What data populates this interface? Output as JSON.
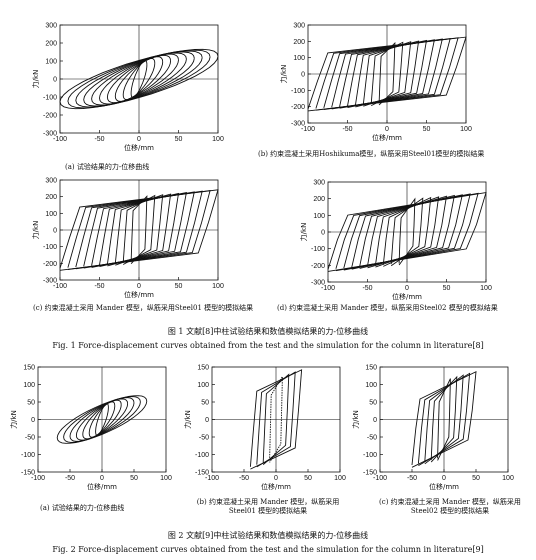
{
  "figure1": {
    "caption_cn": "图 1  文献[8]中柱试验结果和数值模拟结果的力-位移曲线",
    "caption_en": "Fig. 1   Force-displacement curves obtained from the test and the simulation for the column in literature[8]"
  },
  "figure2": {
    "caption_cn": "图 2  文献[9]中柱试验结果和数值模拟结果的力-位移曲线",
    "caption_en": "Fig. 2   Force-displacement curves obtained from the test and the simulation for the column in literature[9]"
  },
  "chart_data": [
    {
      "id": "1a",
      "type": "line",
      "style": "test",
      "xlabel": "位移/mm",
      "ylabel": "力/kN",
      "xlim": [
        -100,
        100
      ],
      "ylim": [
        -300,
        300
      ],
      "xticks": [
        -100,
        -50,
        0,
        50,
        100
      ],
      "yticks": [
        -300,
        -200,
        -100,
        0,
        100,
        200,
        300
      ],
      "caption": "(a) 试验结果的力-位移曲线",
      "amplitudes": [
        10,
        20,
        30,
        40,
        50,
        60,
        70,
        80,
        90,
        100
      ],
      "peak_force": 230
    },
    {
      "id": "1b",
      "type": "line",
      "style": "steel01",
      "xlabel": "位移/mm",
      "ylabel": "力/kN",
      "xlim": [
        -100,
        100
      ],
      "ylim": [
        -300,
        300
      ],
      "xticks": [
        -100,
        -50,
        0,
        50,
        100
      ],
      "yticks": [
        -300,
        -200,
        -100,
        0,
        100,
        200,
        300
      ],
      "caption": "(b) 约束混凝土采用Hoshikuma模型，纵筋采用Steel01模型的模拟结果",
      "amplitudes": [
        10,
        20,
        30,
        40,
        50,
        60,
        70,
        80,
        90,
        100
      ],
      "peak_force": 215
    },
    {
      "id": "1c",
      "type": "line",
      "style": "steel01",
      "xlabel": "位移/mm",
      "ylabel": "力/kN",
      "xlim": [
        -100,
        100
      ],
      "ylim": [
        -300,
        300
      ],
      "xticks": [
        -100,
        -50,
        0,
        50,
        100
      ],
      "yticks": [
        -300,
        -200,
        -100,
        0,
        100,
        200,
        300
      ],
      "caption": "(c) 约束混凝土采用 Mander 模型，纵筋采用Steel01 模型的模拟结果",
      "amplitudes": [
        10,
        20,
        30,
        40,
        50,
        60,
        70,
        80,
        90,
        100
      ],
      "peak_force": 230
    },
    {
      "id": "1d",
      "type": "line",
      "style": "steel02",
      "xlabel": "位移/mm",
      "ylabel": "力/kN",
      "xlim": [
        -100,
        100
      ],
      "ylim": [
        -300,
        300
      ],
      "xticks": [
        -100,
        -50,
        0,
        50,
        100
      ],
      "yticks": [
        -300,
        -200,
        -100,
        0,
        100,
        200,
        300
      ],
      "caption": "(d) 约束混凝土采用 Mander 模型，纵筋采用Steel02 模型的模拟结果",
      "amplitudes": [
        10,
        20,
        30,
        40,
        50,
        60,
        70,
        80,
        90,
        100
      ],
      "peak_force": 225
    },
    {
      "id": "2a",
      "type": "line",
      "style": "test",
      "xlabel": "位移/mm",
      "ylabel": "力/kN",
      "xlim": [
        -100,
        100
      ],
      "ylim": [
        -150,
        150
      ],
      "xticks": [
        -100,
        -50,
        0,
        50,
        100
      ],
      "yticks": [
        -150,
        -100,
        -50,
        0,
        50,
        100,
        150
      ],
      "caption": "(a) 试验结果的力-位移曲线",
      "amplitudes": [
        10,
        20,
        30,
        40,
        50,
        60,
        70
      ],
      "peak_force": 95
    },
    {
      "id": "2b",
      "type": "line",
      "style": "steel01",
      "xlabel": "位移/mm",
      "ylabel": "力/kN",
      "xlim": [
        -100,
        100
      ],
      "ylim": [
        -150,
        150
      ],
      "xticks": [
        -100,
        -50,
        0,
        50,
        100
      ],
      "yticks": [
        -150,
        -100,
        -50,
        0,
        50,
        100,
        150
      ],
      "caption": "(b) 约束混凝土采用 Mander 模型，纵筋采用Steel01 模型的模拟结果",
      "amplitudes": [
        10,
        20,
        30,
        40
      ],
      "peak_force": 135
    },
    {
      "id": "2c",
      "type": "line",
      "style": "steel02",
      "xlabel": "位移/mm",
      "ylabel": "力/kN",
      "xlim": [
        -100,
        100
      ],
      "ylim": [
        -150,
        150
      ],
      "xticks": [
        -100,
        -50,
        0,
        50,
        100
      ],
      "yticks": [
        -150,
        -100,
        -50,
        0,
        50,
        100,
        150
      ],
      "caption": "(c) 约束混凝土采用 Mander 模型，纵筋采用Steel02 模型的模拟结果",
      "amplitudes": [
        10,
        20,
        30,
        40,
        50
      ],
      "peak_force": 130
    }
  ]
}
